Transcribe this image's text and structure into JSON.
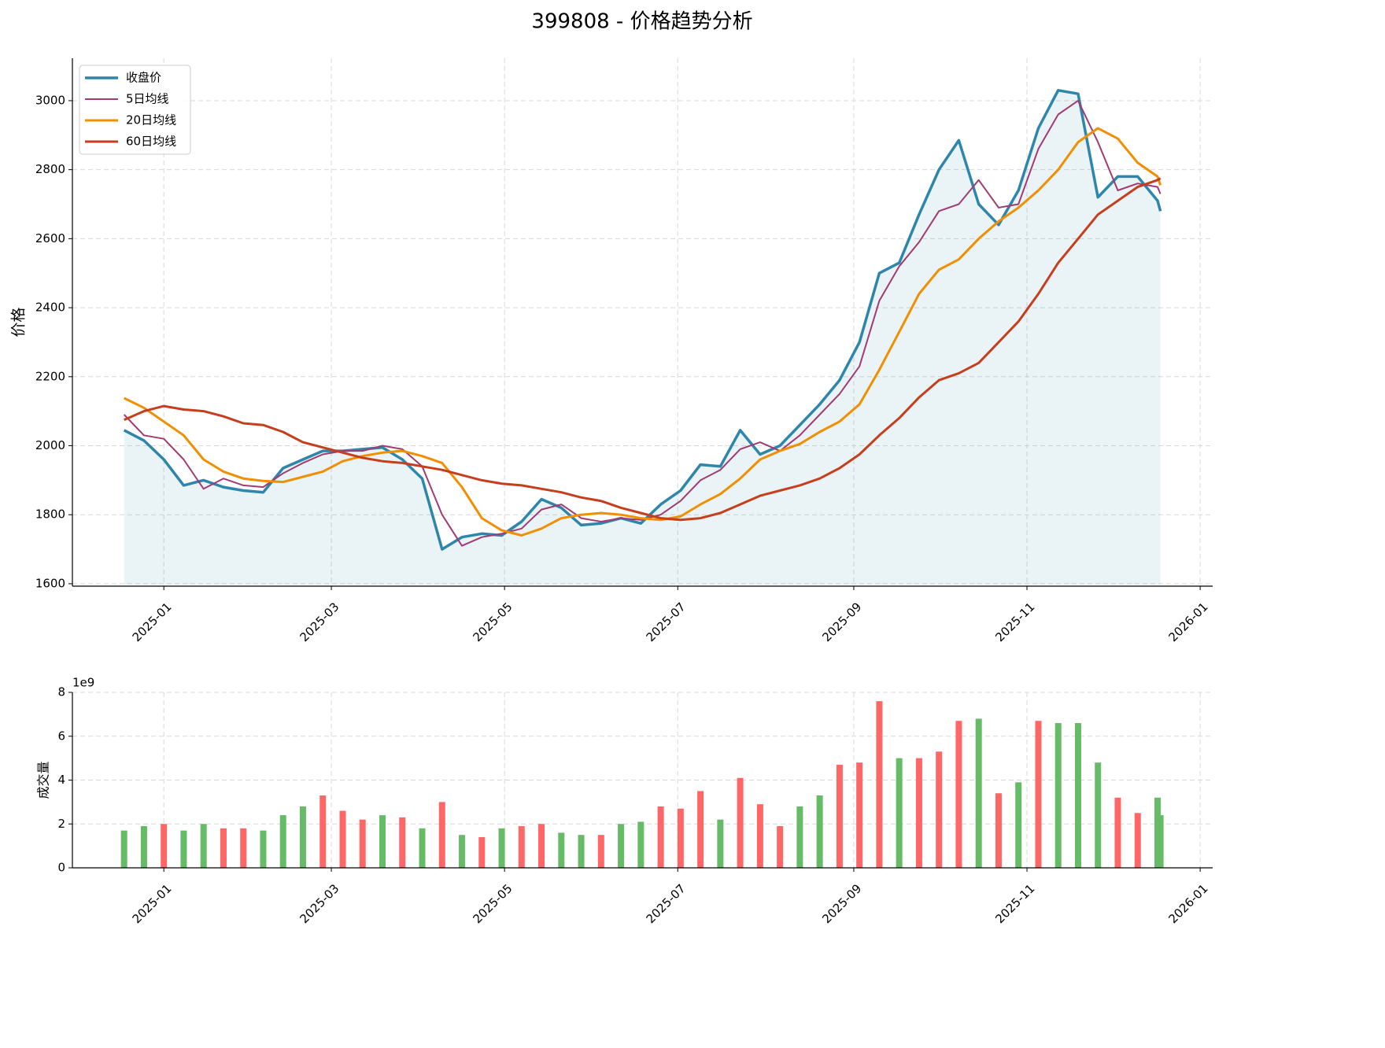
{
  "chart_data": [
    {
      "type": "line",
      "title": "399808 - 价格趋势分析",
      "ylabel": "价格",
      "x": [
        20075,
        20082,
        20089,
        20096,
        20103,
        20110,
        20117,
        20124,
        20131,
        20138,
        20145,
        20152,
        20159,
        20166,
        20173,
        20180,
        20187,
        20194,
        20201,
        20208,
        20215,
        20222,
        20229,
        20236,
        20243,
        20250,
        20257,
        20264,
        20271,
        20278,
        20285,
        20292,
        20299,
        20306,
        20313,
        20320,
        20327,
        20334,
        20341,
        20348,
        20355,
        20362,
        20369,
        20376,
        20383,
        20390,
        20397,
        20404,
        20411,
        20418,
        20425,
        20432,
        20439,
        20440
      ],
      "series": [
        {
          "name": "收盘价",
          "color": "#2e86ab",
          "width": 3.5,
          "fill": true,
          "values": [
            2045,
            2015,
            1960,
            1885,
            1900,
            1880,
            1870,
            1865,
            1935,
            1960,
            1985,
            1985,
            1990,
            1995,
            1960,
            1905,
            1700,
            1735,
            1745,
            1740,
            1780,
            1845,
            1820,
            1770,
            1775,
            1790,
            1775,
            1830,
            1870,
            1945,
            1940,
            2045,
            1975,
            2000,
            2060,
            2120,
            2190,
            2300,
            2500,
            2530,
            2670,
            2800,
            2885,
            2700,
            2640,
            2740,
            2920,
            3030,
            3020,
            2720,
            2780,
            2780,
            2710,
            2680
          ]
        },
        {
          "name": "5日均线",
          "color": "#a23b72",
          "width": 2,
          "values": [
            2090,
            2030,
            2020,
            1960,
            1875,
            1905,
            1885,
            1880,
            1920,
            1950,
            1975,
            1985,
            1985,
            2000,
            1990,
            1940,
            1800,
            1710,
            1735,
            1745,
            1760,
            1815,
            1830,
            1790,
            1780,
            1790,
            1785,
            1800,
            1840,
            1900,
            1930,
            1990,
            2010,
            1985,
            2030,
            2090,
            2150,
            2230,
            2420,
            2520,
            2590,
            2680,
            2700,
            2770,
            2690,
            2700,
            2860,
            2960,
            3000,
            2880,
            2740,
            2760,
            2750,
            2730
          ]
        },
        {
          "name": "20日均线",
          "color": "#f18f01",
          "width": 3,
          "values": [
            2138,
            2110,
            2070,
            2030,
            1960,
            1925,
            1905,
            1898,
            1895,
            1910,
            1925,
            1955,
            1970,
            1980,
            1985,
            1970,
            1950,
            1880,
            1790,
            1755,
            1740,
            1760,
            1790,
            1800,
            1805,
            1800,
            1790,
            1785,
            1795,
            1830,
            1860,
            1905,
            1960,
            1985,
            2005,
            2040,
            2070,
            2120,
            2220,
            2330,
            2440,
            2510,
            2540,
            2600,
            2650,
            2690,
            2740,
            2800,
            2880,
            2920,
            2890,
            2820,
            2780,
            2755
          ]
        },
        {
          "name": "60日均线",
          "color": "#c73e1d",
          "width": 3,
          "values": [
            2075,
            2100,
            2115,
            2105,
            2100,
            2085,
            2065,
            2060,
            2040,
            2010,
            1995,
            1980,
            1965,
            1955,
            1950,
            1940,
            1930,
            1915,
            1900,
            1890,
            1885,
            1875,
            1865,
            1850,
            1840,
            1820,
            1805,
            1790,
            1785,
            1790,
            1805,
            1830,
            1855,
            1870,
            1885,
            1905,
            1935,
            1975,
            2030,
            2080,
            2140,
            2190,
            2210,
            2240,
            2300,
            2360,
            2440,
            2530,
            2600,
            2670,
            2710,
            2750,
            2770,
            2775
          ]
        }
      ],
      "xlim": [
        20056.8,
        20458.4
      ],
      "xticks": [
        {
          "value": 20089,
          "label": "2025-01"
        },
        {
          "value": 20148,
          "label": "2025-03"
        },
        {
          "value": 20209,
          "label": "2025-05"
        },
        {
          "value": 20270,
          "label": "2025-07"
        },
        {
          "value": 20332,
          "label": "2025-09"
        },
        {
          "value": 20393,
          "label": "2025-11"
        },
        {
          "value": 20454,
          "label": "2026-01"
        }
      ],
      "ylim": [
        1593,
        3123
      ],
      "yticks": [
        1600,
        1800,
        2000,
        2200,
        2400,
        2600,
        2800,
        3000
      ],
      "grid": true,
      "legend": "upper left"
    },
    {
      "type": "bar",
      "ylabel": "成交量",
      "offset_text": "1e9",
      "x": [
        20075,
        20082,
        20089,
        20096,
        20103,
        20110,
        20117,
        20124,
        20131,
        20138,
        20145,
        20152,
        20159,
        20166,
        20173,
        20180,
        20187,
        20194,
        20201,
        20208,
        20215,
        20222,
        20229,
        20236,
        20243,
        20250,
        20257,
        20264,
        20271,
        20278,
        20285,
        20292,
        20299,
        20306,
        20313,
        20320,
        20327,
        20334,
        20341,
        20348,
        20355,
        20362,
        20369,
        20376,
        20383,
        20390,
        20397,
        20404,
        20411,
        20418,
        20425,
        20432,
        20439,
        20440
      ],
      "values": [
        1700000000,
        1900000000,
        2000000000,
        1700000000,
        2000000000,
        1800000000,
        1800000000,
        1700000000,
        2400000000,
        2800000000,
        3300000000,
        2600000000,
        2200000000,
        2400000000,
        2300000000,
        1800000000,
        3000000000,
        1500000000,
        1400000000,
        1800000000,
        1900000000,
        2000000000,
        1600000000,
        1500000000,
        1500000000,
        2000000000,
        2100000000,
        2800000000,
        2700000000,
        3500000000,
        2200000000,
        4100000000,
        2900000000,
        1900000000,
        2800000000,
        3300000000,
        4700000000,
        4800000000,
        7600000000,
        5000000000,
        5000000000,
        5300000000,
        6700000000,
        6800000000,
        3400000000,
        3900000000,
        6700000000,
        6600000000,
        6600000000,
        4800000000,
        3200000000,
        2500000000,
        3200000000,
        2400000000
      ],
      "colors": [
        "#66bb66",
        "#66bb66",
        "#ff6666",
        "#66bb66",
        "#66bb66",
        "#ff6666",
        "#ff6666",
        "#66bb66",
        "#66bb66",
        "#66bb66",
        "#ff6666",
        "#ff6666",
        "#ff6666",
        "#66bb66",
        "#ff6666",
        "#66bb66",
        "#ff6666",
        "#66bb66",
        "#ff6666",
        "#66bb66",
        "#ff6666",
        "#ff6666",
        "#66bb66",
        "#66bb66",
        "#ff6666",
        "#66bb66",
        "#66bb66",
        "#ff6666",
        "#ff6666",
        "#ff6666",
        "#66bb66",
        "#ff6666",
        "#ff6666",
        "#ff6666",
        "#66bb66",
        "#66bb66",
        "#ff6666",
        "#ff6666",
        "#ff6666",
        "#66bb66",
        "#ff6666",
        "#ff6666",
        "#ff6666",
        "#66bb66",
        "#ff6666",
        "#66bb66",
        "#ff6666",
        "#66bb66",
        "#66bb66",
        "#66bb66",
        "#ff6666",
        "#ff6666",
        "#66bb66",
        "#66bb66"
      ],
      "xlim": [
        20056.8,
        20458.4
      ],
      "xticks": [
        {
          "value": 20089,
          "label": "2025-01"
        },
        {
          "value": 20148,
          "label": "2025-03"
        },
        {
          "value": 20209,
          "label": "2025-05"
        },
        {
          "value": 20270,
          "label": "2025-07"
        },
        {
          "value": 20332,
          "label": "2025-09"
        },
        {
          "value": 20393,
          "label": "2025-11"
        },
        {
          "value": 20454,
          "label": "2026-01"
        }
      ],
      "ylim": [
        0,
        8000000000
      ],
      "yticks": [
        {
          "value": 0,
          "label": "0"
        },
        {
          "value": 2000000000,
          "label": "2"
        },
        {
          "value": 4000000000,
          "label": "4"
        },
        {
          "value": 6000000000,
          "label": "6"
        },
        {
          "value": 8000000000,
          "label": "8"
        }
      ],
      "grid": true
    }
  ]
}
